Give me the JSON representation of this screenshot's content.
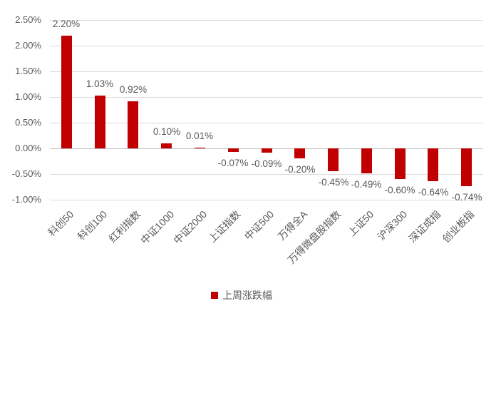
{
  "chart_data": {
    "type": "bar",
    "title": "",
    "xlabel": "",
    "ylabel": "",
    "categories": [
      "科创50",
      "科创100",
      "红利指数",
      "中证1000",
      "中证2000",
      "上证指数",
      "中证500",
      "万得全A",
      "万得微盘股指数",
      "上证50",
      "沪深300",
      "深证成指",
      "创业板指"
    ],
    "values": [
      2.2,
      1.03,
      0.92,
      0.1,
      0.01,
      -0.07,
      -0.09,
      -0.2,
      -0.45,
      -0.49,
      -0.6,
      -0.64,
      -0.74
    ],
    "data_labels": [
      "2.20%",
      "1.03%",
      "0.92%",
      "0.10%",
      "0.01%",
      "-0.07%",
      "-0.09%",
      "-0.20%",
      "-0.45%",
      "-0.49%",
      "-0.60%",
      "-0.64%",
      "-0.74%"
    ],
    "y_ticks": [
      "2.50%",
      "2.00%",
      "1.50%",
      "1.00%",
      "0.50%",
      "0.00%",
      "-0.50%",
      "-1.00%"
    ],
    "y_tick_values": [
      2.5,
      2.0,
      1.5,
      1.0,
      0.5,
      0.0,
      -0.5,
      -1.0
    ],
    "ylim": [
      -1.0,
      2.5
    ],
    "grid": true,
    "legend": {
      "label": "上周涨跌幅",
      "position": "bottom"
    },
    "colors": {
      "bar": "#c00000",
      "gridline": "#dcdcdc",
      "zero_line": "#bfbfbf",
      "text": "#595959"
    }
  }
}
